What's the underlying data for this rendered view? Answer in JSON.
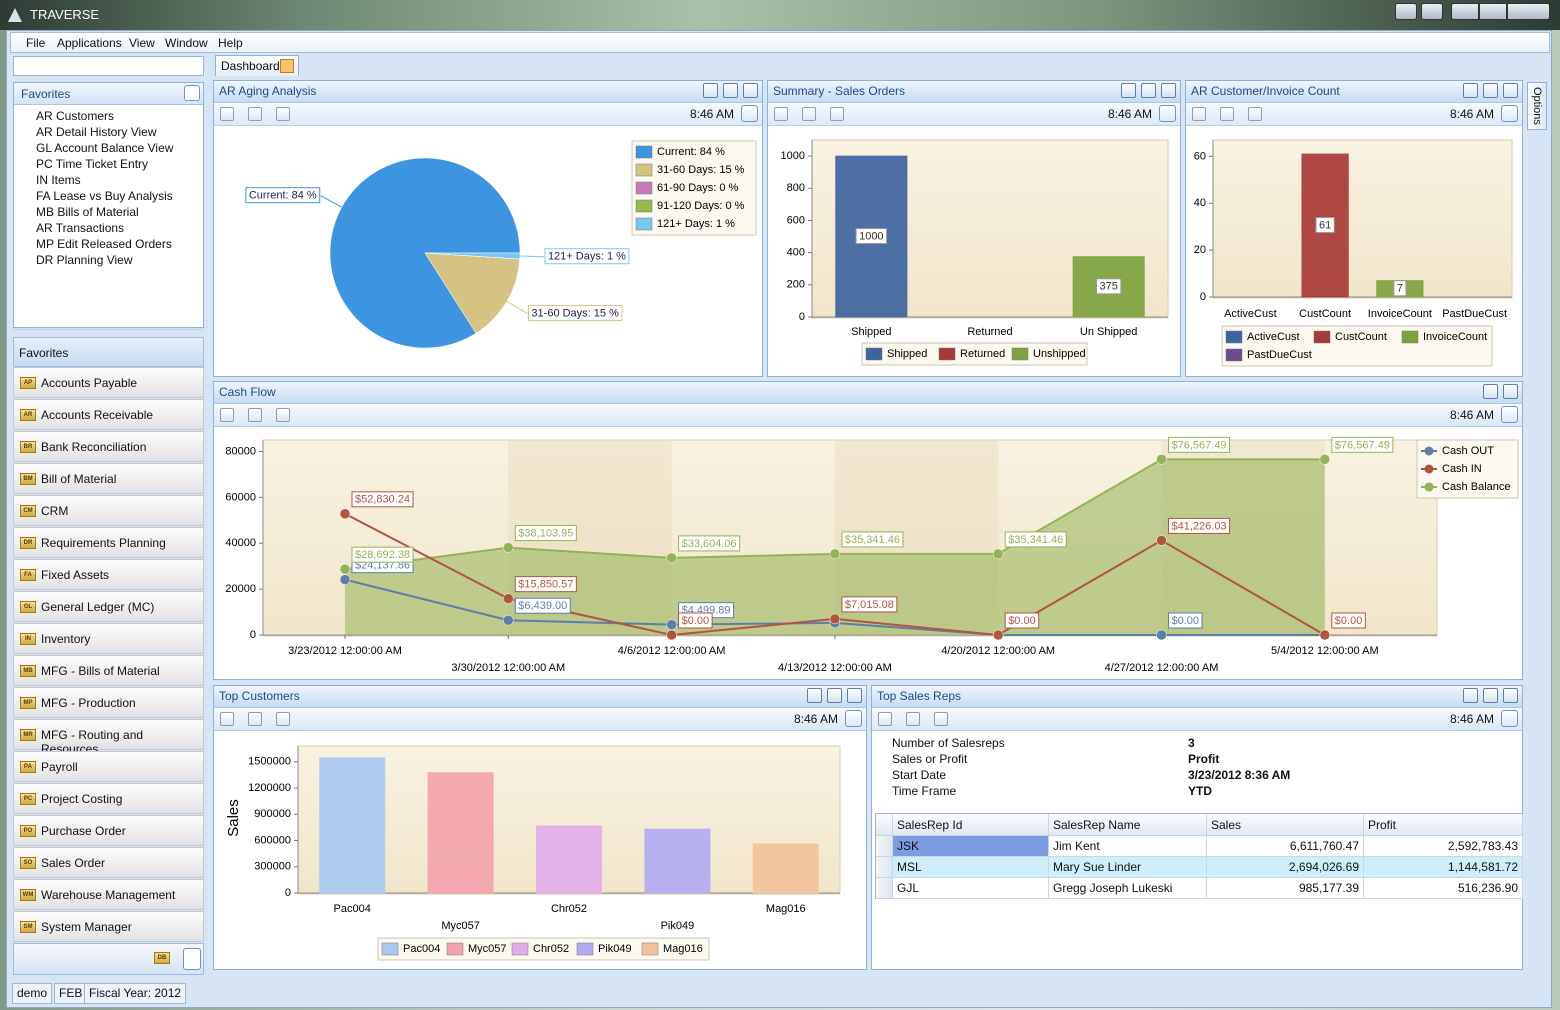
{
  "window": {
    "title": "TRAVERSE"
  },
  "menu": [
    "File",
    "Applications",
    "View",
    "Window",
    "Help"
  ],
  "tab": "Dashboard",
  "options_tab": "Options",
  "favorites": {
    "title": "Favorites",
    "items": [
      "AR Customers",
      "AR Detail History View",
      "GL Account Balance View",
      "PC Time Ticket Entry",
      "IN Items",
      "FA Lease vs Buy Analysis",
      "MB Bills of Material",
      "AR Transactions",
      "MP Edit Released Orders",
      "DR Planning View"
    ]
  },
  "navigation": {
    "title": "Favorites",
    "footer_icon": "DB",
    "modules": [
      {
        "code": "AP",
        "label": "Accounts Payable"
      },
      {
        "code": "AR",
        "label": "Accounts Receivable"
      },
      {
        "code": "BR",
        "label": "Bank Reconciliation"
      },
      {
        "code": "BM",
        "label": "Bill of Material"
      },
      {
        "code": "CM",
        "label": "CRM"
      },
      {
        "code": "DR",
        "label": "Requirements Planning"
      },
      {
        "code": "FA",
        "label": "Fixed Assets"
      },
      {
        "code": "GL",
        "label": "General Ledger (MC)"
      },
      {
        "code": "IN",
        "label": "Inventory"
      },
      {
        "code": "MB",
        "label": "MFG - Bills of Material"
      },
      {
        "code": "MP",
        "label": "MFG - Production"
      },
      {
        "code": "MR",
        "label": "MFG - Routing and Resources"
      },
      {
        "code": "PA",
        "label": "Payroll"
      },
      {
        "code": "PC",
        "label": "Project Costing"
      },
      {
        "code": "PO",
        "label": "Purchase Order"
      },
      {
        "code": "SO",
        "label": "Sales Order"
      },
      {
        "code": "WM",
        "label": "Warehouse Management"
      },
      {
        "code": "SM",
        "label": "System Manager"
      }
    ]
  },
  "toolbar_time": "8:46 AM",
  "chart_data": [
    {
      "type": "pie",
      "title": "AR Aging Analysis",
      "categories": [
        "Current",
        "31-60 Days",
        "61-90 Days",
        "91-120 Days",
        "121+ Days"
      ],
      "values": [
        84,
        15,
        0,
        0,
        1
      ],
      "value_labels": [
        "Current: 84 %",
        "31-60 Days: 15 %",
        "61-90 Days: 0 %",
        "91-120 Days: 0 %",
        "121+ Days: 1 %"
      ],
      "colors": [
        "#3d94e0",
        "#d6c384",
        "#c779b8",
        "#98b84a",
        "#79c6f2"
      ],
      "legend": "top-right"
    },
    {
      "type": "bar",
      "title": "Summary - Sales Orders",
      "categories": [
        "Shipped",
        "Returned",
        "Un Shipped"
      ],
      "series": [
        {
          "name": "Shipped",
          "color": "#3e64a0",
          "values": [
            1000,
            null,
            null
          ]
        },
        {
          "name": "Returned",
          "color": "#a83a36",
          "values": [
            null,
            0,
            null
          ]
        },
        {
          "name": "Unshipped",
          "color": "#7ea23e",
          "values": [
            null,
            null,
            375
          ]
        }
      ],
      "ylim": [
        0,
        1100
      ],
      "yticks": [
        0,
        200,
        400,
        600,
        800,
        1000
      ],
      "data_labels": true,
      "legend": "bottom"
    },
    {
      "type": "bar",
      "title": "AR Customer/Invoice Count",
      "categories": [
        "ActiveCust",
        "CustCount",
        "InvoiceCount",
        "PastDueCust"
      ],
      "series": [
        {
          "name": "ActiveCust",
          "color": "#3e64a0",
          "values": [
            0,
            null,
            null,
            null
          ]
        },
        {
          "name": "CustCount",
          "color": "#a83a36",
          "values": [
            null,
            61,
            null,
            null
          ]
        },
        {
          "name": "InvoiceCount",
          "color": "#7ea23e",
          "values": [
            null,
            null,
            7,
            null
          ]
        },
        {
          "name": "PastDueCust",
          "color": "#6b4c8c",
          "values": [
            null,
            null,
            null,
            0
          ]
        }
      ],
      "ylim": [
        0,
        67
      ],
      "yticks": [
        0,
        20,
        40,
        60
      ],
      "data_labels": true,
      "legend": "bottom"
    },
    {
      "type": "line",
      "title": "Cash Flow",
      "categories": [
        "3/23/2012 12:00:00 AM",
        "3/30/2012 12:00:00 AM",
        "4/6/2012 12:00:00 AM",
        "4/13/2012 12:00:00 AM",
        "4/20/2012 12:00:00 AM",
        "4/27/2012 12:00:00 AM",
        "5/4/2012 12:00:00 AM"
      ],
      "series": [
        {
          "name": "Cash OUT",
          "color": "#5b7fa8",
          "values": [
            24137.86,
            6439.0,
            4499.89,
            5277.68,
            0,
            0,
            0
          ],
          "value_labels": [
            "$24,137.86",
            "$6,439.00",
            "$4,499.89",
            null,
            null,
            "$0.00",
            null
          ]
        },
        {
          "name": "Cash IN",
          "color": "#b2553f",
          "values": [
            52830.24,
            15850.57,
            0,
            7015.08,
            0,
            41226.03,
            0
          ],
          "value_labels": [
            "$52,830.24",
            "$15,850.57",
            "$0.00",
            "$7,015.08",
            "$0.00",
            "$41,226.03",
            "$0.00"
          ]
        },
        {
          "name": "Cash Balance",
          "color": "#94b356",
          "area": true,
          "values": [
            28692.38,
            38103.95,
            33604.06,
            35341.46,
            35341.46,
            76567.49,
            76567.49
          ],
          "value_labels": [
            "$28,692.38",
            "$38,103.95",
            "$33,604.06",
            "$35,341.46",
            "$35,341.46",
            "$76,567.49",
            "$76,567.49"
          ]
        }
      ],
      "ylim": [
        0,
        85000
      ],
      "yticks": [
        0,
        20000,
        40000,
        60000,
        80000
      ],
      "legend": "top-right"
    },
    {
      "type": "bar",
      "title": "Top Customers",
      "ylabel": "Sales",
      "categories": [
        "Pac004",
        "Myc057",
        "Chr052",
        "Pik049",
        "Mag016"
      ],
      "values": [
        1545000,
        1375000,
        765000,
        730000,
        560000
      ],
      "colors": [
        "#a9c9f2",
        "#f2a3ab",
        "#e2abea",
        "#b2aaf2",
        "#f2c39b"
      ],
      "ylim": [
        0,
        1680000
      ],
      "yticks": [
        0,
        300000,
        600000,
        900000,
        1200000,
        1500000
      ],
      "data_labels": false,
      "legend": "bottom"
    }
  ],
  "sales_reps": {
    "title": "Top Sales Reps",
    "parameters": [
      [
        "Number of Salesreps",
        "3"
      ],
      [
        "Sales or Profit",
        "Profit"
      ],
      [
        "Start Date",
        "3/23/2012 8:36 AM"
      ],
      [
        "Time Frame",
        "YTD"
      ]
    ],
    "columns": [
      "SalesRep Id",
      "SalesRep Name",
      "Sales",
      "Profit"
    ],
    "rows": [
      [
        "JSK",
        "Jim Kent",
        "6,611,760.47",
        "2,592,783.43"
      ],
      [
        "MSL",
        "Mary Sue Linder",
        "2,694,026.69",
        "1,144,581.72"
      ],
      [
        "GJL",
        "Gregg Joseph Lukeski",
        "985,177.39",
        "516,236.90"
      ]
    ]
  },
  "status": [
    "demo",
    "FEB",
    "Fiscal Year: 2012"
  ]
}
